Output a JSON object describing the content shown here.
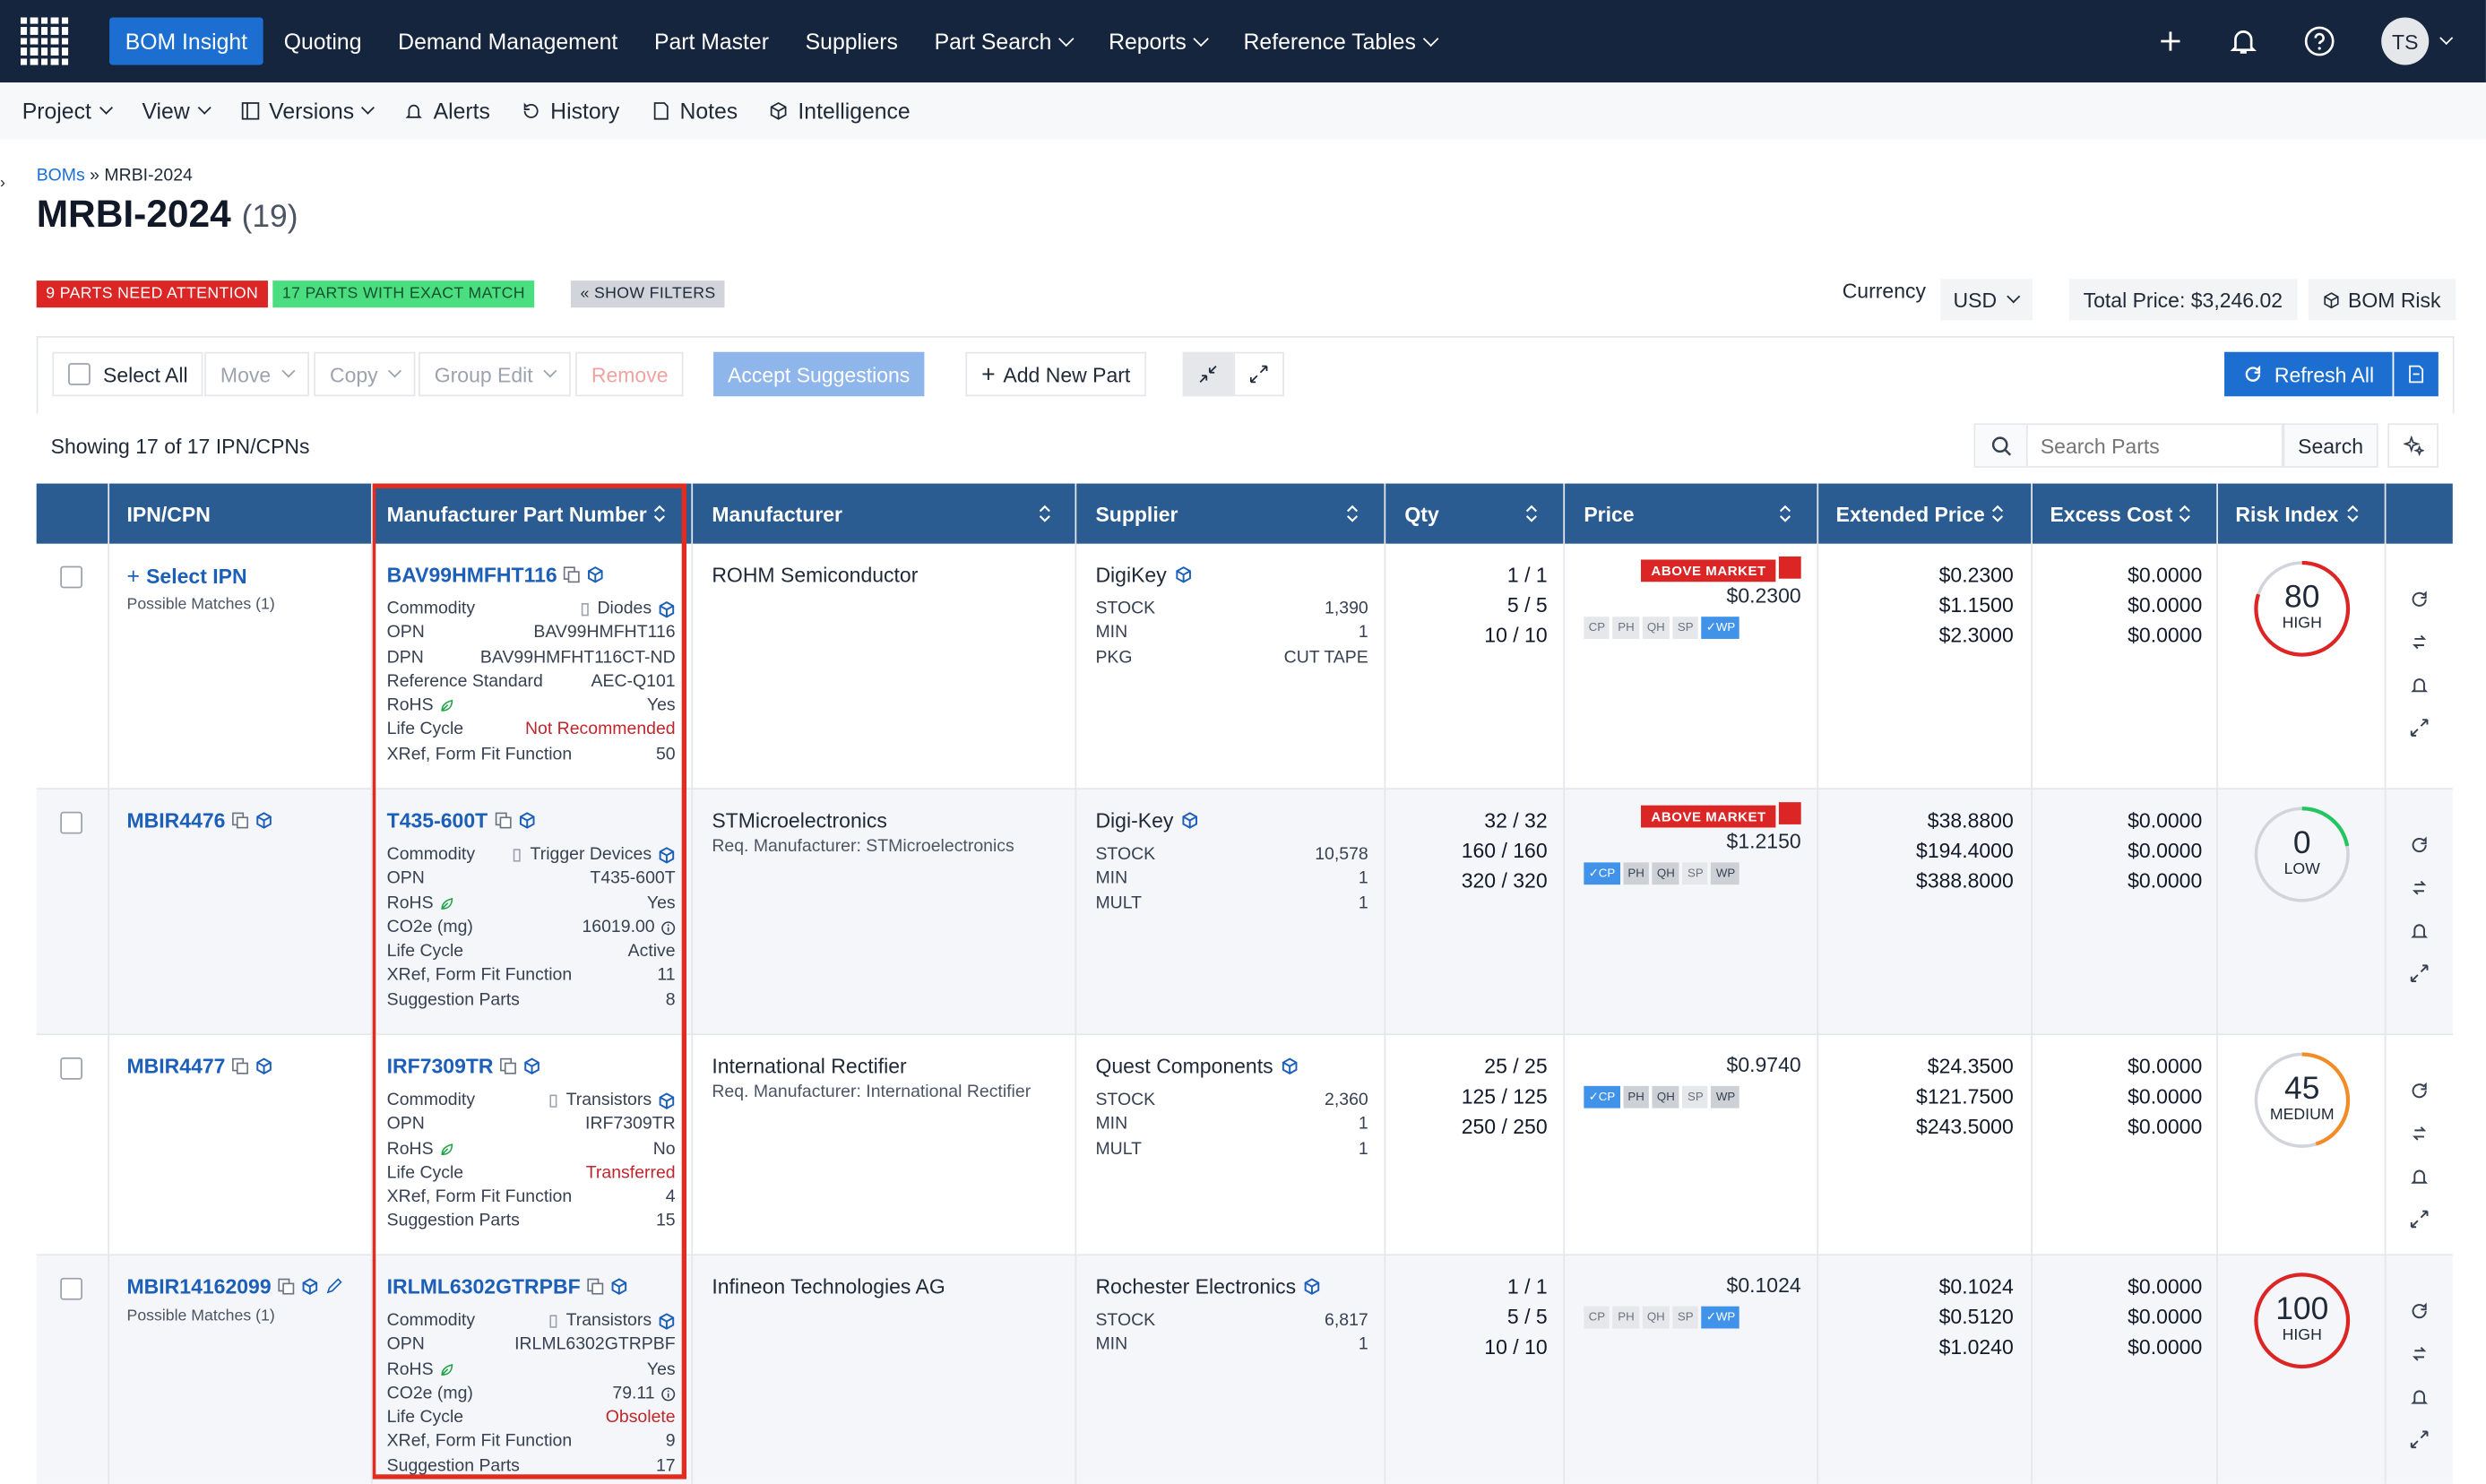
{
  "topnav": {
    "items": [
      "BOM Insight",
      "Quoting",
      "Demand Management",
      "Part Master",
      "Suppliers",
      "Part Search",
      "Reports",
      "Reference Tables"
    ],
    "avatar": "TS"
  },
  "subnav": {
    "items": [
      "Project",
      "View",
      "Versions",
      "Alerts",
      "History",
      "Notes",
      "Intelligence"
    ]
  },
  "breadcrumb": {
    "root": "BOMs",
    "sep": "»",
    "current": "MRBI-2024"
  },
  "title": {
    "name": "MRBI-2024",
    "count": "(19)"
  },
  "badges": {
    "attention": "9 PARTS NEED ATTENTION",
    "exact": "17 PARTS WITH EXACT MATCH",
    "filters": "« SHOW FILTERS"
  },
  "currency": {
    "label": "Currency",
    "value": "USD",
    "total": "Total Price: $3,246.02",
    "risk": "BOM Risk"
  },
  "toolbar": {
    "select_all": "Select All",
    "move": "Move",
    "copy": "Copy",
    "group_edit": "Group Edit",
    "remove": "Remove",
    "accept": "Accept Suggestions",
    "add": "Add New Part",
    "refresh": "Refresh All"
  },
  "list": {
    "showing": "Showing 17 of 17 IPN/CPNs",
    "search_placeholder": "Search Parts",
    "search_btn": "Search"
  },
  "columns": [
    "IPN/CPN",
    "Manufacturer Part Number",
    "Manufacturer",
    "Supplier",
    "Qty",
    "Price",
    "Extended Price",
    "Excess Cost",
    "Risk Index"
  ],
  "rows": [
    {
      "ipn": "Select IPN",
      "ipn_sub": "Possible Matches (1)",
      "mpn": "BAV99HMFHT116",
      "attrs": [
        [
          "Commodity",
          "Diodes"
        ],
        [
          "OPN",
          "BAV99HMFHT116"
        ],
        [
          "DPN",
          "BAV99HMFHT116CT-ND"
        ],
        [
          "Reference Standard",
          "AEC-Q101"
        ],
        [
          "RoHS",
          "Yes"
        ],
        [
          "Life Cycle",
          "Not Recommended"
        ],
        [
          "XRef, Form Fit Function",
          "50"
        ]
      ],
      "manufacturer": "ROHM Semiconductor",
      "mfr_sub": "",
      "supplier": "DigiKey",
      "supp_attrs": [
        [
          "STOCK",
          "1,390"
        ],
        [
          "MIN",
          "1"
        ],
        [
          "PKG",
          "CUT TAPE"
        ]
      ],
      "qty": [
        "1 / 1",
        "5 / 5",
        "10 / 10"
      ],
      "above": "ABOVE MARKET",
      "price": "$0.2300",
      "pills": [
        "CP",
        "PH",
        "QH",
        "SP",
        "✓WP"
      ],
      "ext": [
        "$0.2300",
        "$1.1500",
        "$2.3000"
      ],
      "excess": [
        "$0.0000",
        "$0.0000",
        "$0.0000"
      ],
      "risk": "80",
      "risk_label": "HIGH"
    },
    {
      "ipn": "MBIR4476",
      "ipn_sub": "",
      "mpn": "T435-600T",
      "attrs": [
        [
          "Commodity",
          "Trigger Devices"
        ],
        [
          "OPN",
          "T435-600T"
        ],
        [
          "RoHS",
          "Yes"
        ],
        [
          "CO2e (mg)",
          "16019.00"
        ],
        [
          "Life Cycle",
          "Active"
        ],
        [
          "XRef, Form Fit Function",
          "11"
        ],
        [
          "Suggestion Parts",
          "8"
        ]
      ],
      "manufacturer": "STMicroelectronics",
      "mfr_sub": "Req. Manufacturer: STMicroelectronics",
      "supplier": "Digi-Key",
      "supp_attrs": [
        [
          "STOCK",
          "10,578"
        ],
        [
          "MIN",
          "1"
        ],
        [
          "MULT",
          "1"
        ]
      ],
      "qty": [
        "32 / 32",
        "160 / 160",
        "320 / 320"
      ],
      "above": "ABOVE MARKET",
      "price": "$1.2150",
      "pills": [
        "✓CP",
        "PH",
        "QH",
        "SP",
        "WP"
      ],
      "ext": [
        "$38.8800",
        "$194.4000",
        "$388.8000"
      ],
      "excess": [
        "$0.0000",
        "$0.0000",
        "$0.0000"
      ],
      "risk": "0",
      "risk_label": "LOW"
    },
    {
      "ipn": "MBIR4477",
      "ipn_sub": "",
      "mpn": "IRF7309TR",
      "attrs": [
        [
          "Commodity",
          "Transistors"
        ],
        [
          "OPN",
          "IRF7309TR"
        ],
        [
          "RoHS",
          "No"
        ],
        [
          "Life Cycle",
          "Transferred"
        ],
        [
          "XRef, Form Fit Function",
          "4"
        ],
        [
          "Suggestion Parts",
          "15"
        ]
      ],
      "manufacturer": "International Rectifier",
      "mfr_sub": "Req. Manufacturer: International Rectifier",
      "supplier": "Quest Components",
      "supp_attrs": [
        [
          "STOCK",
          "2,360"
        ],
        [
          "MIN",
          "1"
        ],
        [
          "MULT",
          "1"
        ]
      ],
      "qty": [
        "25 / 25",
        "125 / 125",
        "250 / 250"
      ],
      "above": "",
      "price": "$0.9740",
      "pills": [
        "✓CP",
        "PH",
        "QH",
        "SP",
        "WP"
      ],
      "ext": [
        "$24.3500",
        "$121.7500",
        "$243.5000"
      ],
      "excess": [
        "$0.0000",
        "$0.0000",
        "$0.0000"
      ],
      "risk": "45",
      "risk_label": "MEDIUM"
    },
    {
      "ipn": "MBIR14162099",
      "ipn_sub": "Possible Matches (1)",
      "mpn": "IRLML6302GTRPBF",
      "attrs": [
        [
          "Commodity",
          "Transistors"
        ],
        [
          "OPN",
          "IRLML6302GTRPBF"
        ],
        [
          "RoHS",
          "Yes"
        ],
        [
          "CO2e (mg)",
          "79.11"
        ],
        [
          "Life Cycle",
          "Obsolete"
        ],
        [
          "XRef, Form Fit Function",
          "9"
        ],
        [
          "Suggestion Parts",
          "17"
        ]
      ],
      "manufacturer": "Infineon Technologies AG",
      "mfr_sub": "",
      "supplier": "Rochester Electronics",
      "supp_attrs": [
        [
          "STOCK",
          "6,817"
        ],
        [
          "MIN",
          "1"
        ]
      ],
      "qty": [
        "1 / 1",
        "5 / 5",
        "10 / 10"
      ],
      "above": "",
      "price": "$0.1024",
      "pills": [
        "CP",
        "PH",
        "QH",
        "SP",
        "✓WP"
      ],
      "ext": [
        "$0.1024",
        "$0.5120",
        "$1.0240"
      ],
      "excess": [
        "$0.0000",
        "$0.0000",
        "$0.0000"
      ],
      "risk": "100",
      "risk_label": "HIGH"
    }
  ],
  "colors": {
    "nav_bg": "#14253d",
    "header_bg": "#2a5c91",
    "accent": "#1c6fd1",
    "danger": "#dc2626",
    "success": "#4ade80",
    "highlight": "#e02d1f"
  }
}
